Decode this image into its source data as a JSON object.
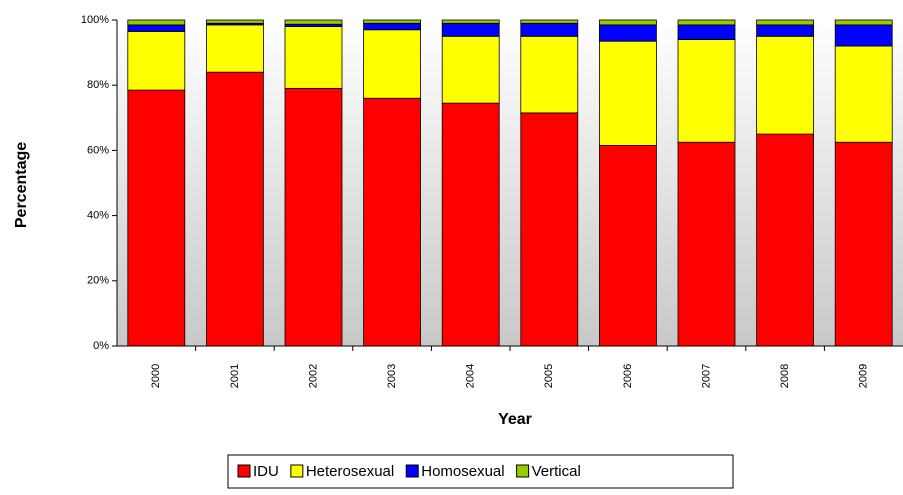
{
  "chart_data": {
    "type": "stacked_bar",
    "x_label": "Year",
    "y_label": "Percentage",
    "categories": [
      "2000",
      "2001",
      "2002",
      "2003",
      "2004",
      "2005",
      "2006",
      "2007",
      "2008",
      "2009"
    ],
    "series": [
      {
        "name": "IDU",
        "color": "#ff0000",
        "values": [
          78.5,
          84,
          79,
          76,
          74.5,
          71.5,
          61.5,
          62.5,
          65,
          62.5
        ]
      },
      {
        "name": "Heterosexual",
        "color": "#ffff00",
        "values": [
          18,
          14.5,
          19,
          21,
          20.5,
          23.5,
          32,
          31.5,
          30,
          29.5
        ]
      },
      {
        "name": "Homosexual",
        "color": "#0000ff",
        "values": [
          2,
          0.5,
          0.7,
          2,
          4,
          4,
          5,
          4.5,
          3.5,
          6.5
        ]
      },
      {
        "name": "Vertical",
        "color": "#99cc00",
        "values": [
          1.5,
          1,
          1.3,
          1,
          1,
          1,
          1.5,
          1.5,
          1.5,
          1.5
        ]
      }
    ],
    "ylim": [
      0,
      100
    ],
    "yticks": [
      {
        "value": 0,
        "label": "0%"
      },
      {
        "value": 20,
        "label": "20%"
      },
      {
        "value": 40,
        "label": "40%"
      },
      {
        "value": 60,
        "label": "60%"
      },
      {
        "value": 80,
        "label": "80%"
      },
      {
        "value": 100,
        "label": "100%"
      }
    ],
    "legend": "bottom"
  }
}
